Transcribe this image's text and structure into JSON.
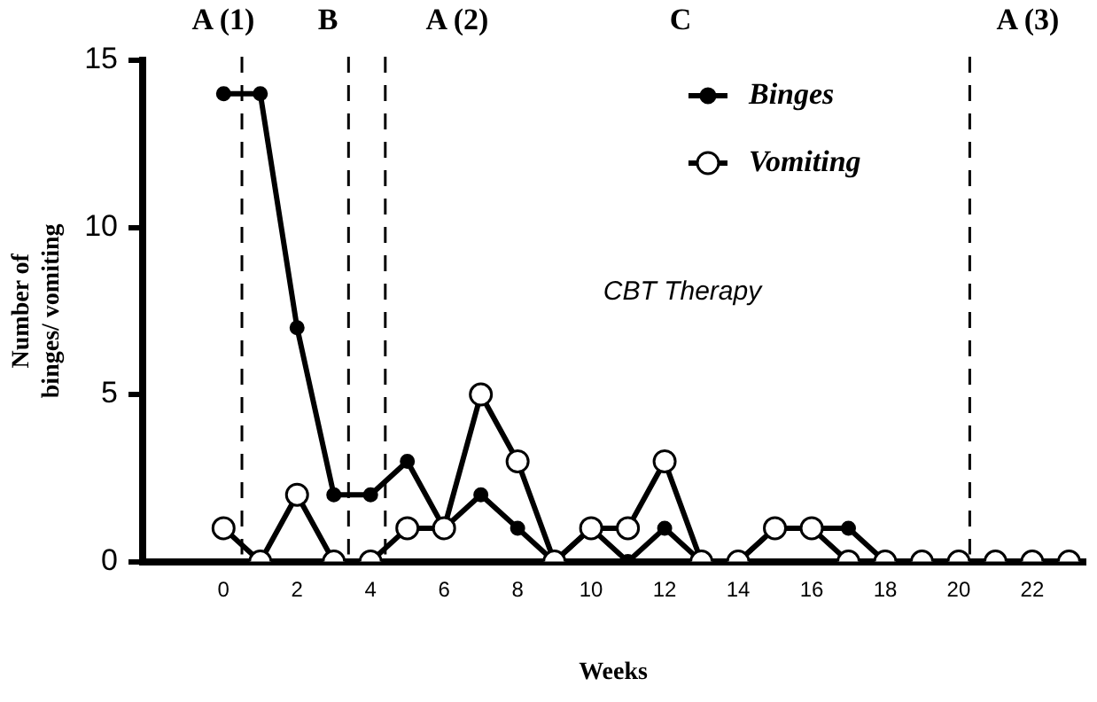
{
  "chart_data": {
    "type": "line",
    "xlabel": "Weeks",
    "ylabel": "Number of binges/ vomiting",
    "x": [
      0,
      1,
      2,
      3,
      4,
      5,
      6,
      7,
      8,
      9,
      10,
      11,
      12,
      13,
      14,
      15,
      16,
      17,
      18,
      19,
      20,
      21,
      22,
      23
    ],
    "xlim": [
      -2.2,
      23.4
    ],
    "xticks": [
      0,
      2,
      4,
      6,
      8,
      10,
      12,
      14,
      16,
      18,
      20,
      22
    ],
    "ylim": [
      0,
      15
    ],
    "yticks": [
      0,
      5,
      10,
      15
    ],
    "series": [
      {
        "name": "Binges",
        "color": "#000000",
        "marker": "circle",
        "values": [
          14,
          14,
          7,
          2,
          2,
          3,
          1,
          2,
          1,
          0,
          1,
          0,
          1,
          0,
          0,
          1,
          1,
          1,
          0,
          0,
          0,
          0,
          0,
          0
        ]
      },
      {
        "name": "Vomiting",
        "color": "#000000",
        "marker": "circle",
        "values": [
          1,
          0,
          2,
          0,
          0,
          1,
          1,
          5,
          3,
          0,
          1,
          1,
          3,
          0,
          0,
          1,
          1,
          0,
          0,
          0,
          0,
          0,
          0,
          0
        ]
      }
    ],
    "ref_lines": [
      {
        "axis": "x",
        "value": 0.5,
        "color": "#000000",
        "line_style": "dashed"
      },
      {
        "axis": "x",
        "value": 3.4,
        "color": "#000000",
        "line_style": "dashed"
      },
      {
        "axis": "x",
        "value": 4.4,
        "color": "#000000",
        "line_style": "dashed"
      },
      {
        "axis": "x",
        "value": 20.3,
        "color": "#000000",
        "line_style": "dashed"
      }
    ],
    "annotations": [
      "A (1)",
      "B",
      "A (2)",
      "C",
      "A (3)",
      "CBT Therapy"
    ],
    "legend": "top right",
    "grid": false
  }
}
